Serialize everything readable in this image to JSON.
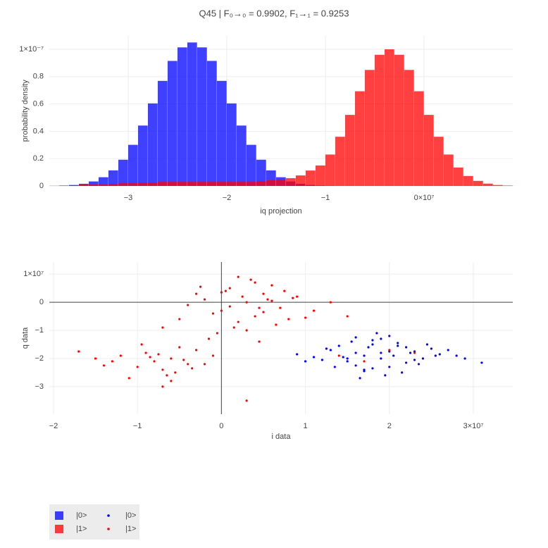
{
  "chart_data": [
    {
      "type": "histogram",
      "title": "Q45 | F₀→₀ = 0.9902, F₁→₁ = 0.9253",
      "xlabel": "iq projection",
      "ylabel": "probability density",
      "bins": [
        -38000000,
        -37000000,
        -36000000,
        -35000000,
        -34000000,
        -33000000,
        -32000000,
        -31000000,
        -30000000,
        -29000000,
        -28000000,
        -27000000,
        -26000000,
        -25000000,
        -24000000,
        -23000000,
        -22000000,
        -21000000,
        -20000000,
        -19000000,
        -18000000,
        -17000000,
        -16000000,
        -15000000,
        -14000000,
        -13000000,
        -12000000,
        -11000000,
        -10000000,
        -9000000,
        -8000000,
        -7000000,
        -6000000,
        -5000000,
        -4000000,
        -3000000,
        -2000000,
        -1000000,
        0,
        1000000,
        2000000,
        3000000,
        4000000,
        5000000,
        6000000,
        7000000,
        8000000,
        9000000
      ],
      "series": [
        {
          "name": "|0>",
          "color": "#0000ff",
          "values": [
            1e-10,
            3e-10,
            7e-10,
            1.6e-09,
            3.3e-09,
            6.4e-09,
            1.14e-08,
            1.92e-08,
            3.01e-08,
            4.42e-08,
            6.04e-08,
            7.69e-08,
            9.15e-08,
            1.014e-07,
            1.05e-07,
            1.014e-07,
            9.15e-08,
            7.69e-08,
            6.04e-08,
            4.42e-08,
            3.01e-08,
            1.92e-08,
            1.14e-08,
            6.4e-09,
            3.3e-09,
            1.6e-09,
            7e-10,
            3e-10,
            1e-10,
            0,
            0,
            0,
            0,
            0,
            0,
            0,
            0,
            0,
            0,
            0,
            0,
            0,
            0,
            0,
            0,
            0,
            0
          ]
        },
        {
          "name": "|1>",
          "color": "#ff0000",
          "values": [
            0,
            0,
            5e-10,
            1e-09,
            1e-09,
            1e-09,
            1.5e-09,
            2e-09,
            2e-09,
            2.5e-09,
            2.5e-09,
            3e-09,
            3e-09,
            3e-09,
            3e-09,
            3e-09,
            3e-09,
            3e-09,
            3e-09,
            3e-09,
            3e-09,
            3.5e-09,
            4.3e-09,
            4.7e-09,
            5.7e-09,
            7.7e-09,
            1.13e-08,
            1.5e-08,
            2.3e-08,
            3.6e-08,
            5.2e-08,
            6.93e-08,
            8.49e-08,
            9.6e-08,
            1e-07,
            9.6e-08,
            8.49e-08,
            6.93e-08,
            5.2e-08,
            3.6e-08,
            2.3e-08,
            1.35e-08,
            7.3e-09,
            3.7e-09,
            1.7e-09,
            7e-10,
            3e-10
          ]
        }
      ],
      "opacity": 0.75,
      "xlim": [
        -38000000,
        9000000
      ],
      "xticks": [
        {
          "value": -30000000,
          "label": "−3"
        },
        {
          "value": -20000000,
          "label": "−2"
        },
        {
          "value": -10000000,
          "label": "−1"
        },
        {
          "value": 0,
          "label": "0×10⁷"
        }
      ],
      "ylim": [
        0,
        1.1e-07
      ],
      "yticks": [
        0,
        {
          "value": 2e-08,
          "label": "0.2"
        },
        {
          "value": 4e-08,
          "label": "0.4"
        },
        {
          "value": 6e-08,
          "label": "0.6"
        },
        {
          "value": 8e-08,
          "label": "0.8"
        },
        {
          "value": 1e-07,
          "label": "1×10⁻⁷"
        }
      ],
      "grid": true
    },
    {
      "type": "scatter",
      "xlabel": "i data",
      "ylabel": "q data",
      "series": [
        {
          "name": "|0>",
          "color": "#0000ff",
          "x": [
            19000000.0,
            15000000.0,
            22000000.0,
            17000000.0,
            24000000.0,
            13000000.0,
            20000000.0,
            18000000.0,
            26000000.0,
            11000000.0,
            16000000.0,
            21000000.0,
            19000000.0,
            23000000.0,
            14000000.0,
            28000000.0,
            17000000.0,
            20000000.0,
            12000000.0,
            25000000.0,
            18000000.0,
            22000000.0,
            16000000.0,
            19500000.0,
            27000000.0,
            13500000.0,
            20500000.0,
            17500000.0,
            23500000.0,
            15500000.0,
            9000000.0,
            29000000.0,
            18500000.0,
            21500000.0,
            14500000.0,
            24500000.0,
            16500000.0,
            20000000.0,
            10000000.0,
            31000000.0,
            19000000.0,
            22500000.0,
            17000000.0,
            15000000.0,
            21000000.0,
            25500000.0,
            12500000.0,
            18000000.0,
            23000000.0,
            16000000.0
          ],
          "values": [
            -18000000.0,
            -21000000.0,
            -16000000.0,
            -19000000.0,
            -20000000.0,
            -17000000.0,
            -23000000.0,
            -15000000.0,
            -18500000.0,
            -19500000.0,
            -22500000.0,
            -14500000.0,
            -20000000.0,
            -17500000.0,
            -15500000.0,
            -19000000.0,
            -24000000.0,
            -12000000.0,
            -20500000.0,
            -16500000.0,
            -13500000.0,
            -21500000.0,
            -18000000.0,
            -26000000.0,
            -17000000.0,
            -23000000.0,
            -19000000.0,
            -16000000.0,
            -22000000.0,
            -14000000.0,
            -18500000.0,
            -20000000.0,
            -11000000.0,
            -25000000.0,
            -19500000.0,
            -15000000.0,
            -27000000.0,
            -17500000.0,
            -21000000.0,
            -21500000.0,
            -13000000.0,
            -18000000.0,
            -24500000.0,
            -20000000.0,
            -15500000.0,
            -19000000.0,
            -16500000.0,
            -23500000.0,
            -20500000.0,
            -12500000.0
          ]
        },
        {
          "name": "|1>",
          "color": "#ff0000",
          "x": [
            3000000.0,
            0,
            5000000.0,
            -2000000.0,
            7000000.0,
            1000000.0,
            4000000.0,
            -4000000.0,
            9000000.0,
            2000000.0,
            6000000.0,
            -1000000.0,
            3500000.0,
            8000000.0,
            -3000000.0,
            1500000.0,
            5500000.0,
            11000000.0,
            500000.0,
            4500000.0,
            -5000000.0,
            2500000.0,
            6500000.0,
            13000000.0,
            -500000.0,
            4000000.0,
            7500000.0,
            1000000.0,
            5000000.0,
            -2500000.0,
            2000000.0,
            10000000.0,
            6000000.0,
            -1500000.0,
            3000000.0,
            8500000.0,
            0,
            15000000.0,
            -7000000.0,
            4500000.0,
            -6000000.0,
            -9000000.0,
            -4000000.0,
            -12000000.0,
            -7000000.0,
            -3000000.0,
            -8000000.0,
            -10000000.0,
            -5000000.0,
            -15000000.0,
            -6500000.0,
            -2000000.0,
            -9500000.0,
            -5500000.0,
            -13000000.0,
            -7500000.0,
            -4500000.0,
            -11000000.0,
            -8500000.0,
            -3500000.0,
            -17000000.0,
            -6000000.0,
            -1000000.0,
            -14000000.0,
            -7000000.0,
            14000000.0,
            20000000.0,
            17000000.0,
            23000000.0,
            3000000.0
          ],
          "values": [
            0,
            -3000000.0,
            3000000.0,
            1000000.0,
            -2000000.0,
            5000000.0,
            -5000000.0,
            -1000000.0,
            2000000.0,
            -7000000.0,
            6000000.0,
            -4000000.0,
            8000000.0,
            -6000000.0,
            3000000.0,
            -9000000.0,
            1000000.0,
            -3000000.0,
            4000000.0,
            -2000000.0,
            -6000000.0,
            2000000.0,
            -8000000.0,
            0,
            -11000000.0,
            7000000.0,
            4000000.0,
            -1500000.0,
            -3500000.0,
            5500000.0,
            9000000.0,
            -5500000.0,
            500000.0,
            -13000000.0,
            -10000000.0,
            1500000.0,
            3500000.0,
            -5000000.0,
            -9000000.0,
            -14000000.0,
            -20000000.0,
            -18000000.0,
            -22000000.0,
            -19000000.0,
            -24000000.0,
            -17000000.0,
            -21000000.0,
            -23000000.0,
            -16000000.0,
            -20000000.0,
            -26000000.0,
            -22000000.0,
            -15000000.0,
            -25000000.0,
            -21000000.0,
            -18500000.0,
            -20500000.0,
            -27000000.0,
            -19500000.0,
            -23500000.0,
            -17500000.0,
            -28000000.0,
            -19000000.0,
            -22500000.0,
            -30000000.0,
            -19000000.0,
            -17000000.0,
            -21000000.0,
            -18000000.0,
            -35000000.0
          ]
        }
      ],
      "xlim": [
        -20500000,
        34700000
      ],
      "xticks": [
        {
          "value": -20000000,
          "label": "−2"
        },
        {
          "value": -10000000,
          "label": "−1"
        },
        0,
        {
          "value": 10000000,
          "label": "1"
        },
        {
          "value": 20000000,
          "label": "2"
        },
        {
          "value": 30000000,
          "label": "3×10⁷"
        }
      ],
      "ylim": [
        -39800000,
        14300000
      ],
      "yticks": [
        {
          "value": -30000000,
          "label": "−3"
        },
        {
          "value": -20000000,
          "label": "−2"
        },
        {
          "value": -10000000,
          "label": "−1"
        },
        0,
        {
          "value": 10000000,
          "label": "1×10⁷"
        }
      ],
      "grid": true,
      "zeroline": true
    }
  ]
}
